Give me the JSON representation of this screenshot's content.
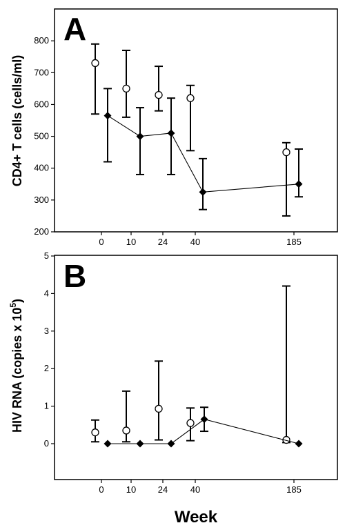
{
  "chart_data": [
    {
      "type": "line",
      "panel": "A",
      "ylabel": "CD4+ T cells (cells/ml)",
      "xlabel": "",
      "categories": [
        "0",
        "10",
        "24",
        "40",
        "185"
      ],
      "ylim": [
        200,
        900
      ],
      "yticks": [
        200,
        300,
        400,
        500,
        600,
        700,
        800
      ],
      "series": [
        {
          "marker": "circle-open",
          "connected": false,
          "points": [
            {
              "x": "0",
              "y": 730,
              "low": 570,
              "high": 790
            },
            {
              "x": "10",
              "y": 650,
              "low": 560,
              "high": 770
            },
            {
              "x": "24",
              "y": 630,
              "low": 580,
              "high": 720
            },
            {
              "x": "40",
              "y": 620,
              "low": 455,
              "high": 660
            },
            {
              "x": "185",
              "y": 450,
              "low": 250,
              "high": 480
            }
          ]
        },
        {
          "marker": "diamond-filled",
          "connected": true,
          "points": [
            {
              "x": "0",
              "y": 565,
              "low": 420,
              "high": 650
            },
            {
              "x": "10",
              "y": 500,
              "low": 380,
              "high": 590
            },
            {
              "x": "24",
              "y": 510,
              "low": 380,
              "high": 620
            },
            {
              "x": "40",
              "y": 325,
              "low": 270,
              "high": 430
            },
            {
              "x": "185",
              "y": 350,
              "low": 310,
              "high": 460
            }
          ]
        }
      ]
    },
    {
      "type": "line",
      "panel": "B",
      "ylabel_main": "HIV RNA (copies x 10",
      "ylabel_sup": "5",
      "ylabel_end": ")",
      "xlabel": "Week",
      "categories": [
        "0",
        "10",
        "24",
        "40",
        "185"
      ],
      "ylim": [
        -1,
        5
      ],
      "yticks": [
        0,
        1,
        2,
        3,
        4,
        5
      ],
      "series": [
        {
          "marker": "circle-open",
          "connected": false,
          "points": [
            {
              "x": "0",
              "y": 0.3,
              "low": 0.05,
              "high": 0.63
            },
            {
              "x": "10",
              "y": 0.35,
              "low": 0.05,
              "high": 1.4
            },
            {
              "x": "24",
              "y": 0.93,
              "low": 0.1,
              "high": 2.2
            },
            {
              "x": "40",
              "y": 0.55,
              "low": 0.08,
              "high": 0.95
            },
            {
              "x": "185",
              "y": 0.1,
              "low": 0.03,
              "high": 4.2
            }
          ]
        },
        {
          "marker": "diamond-filled",
          "connected": true,
          "points": [
            {
              "x": "0",
              "y": 0,
              "low": null,
              "high": null
            },
            {
              "x": "10",
              "y": 0,
              "low": null,
              "high": null
            },
            {
              "x": "24",
              "y": 0,
              "low": null,
              "high": null
            },
            {
              "x": "40",
              "y": 0.65,
              "low": 0.33,
              "high": 0.97
            },
            {
              "x": "185",
              "y": 0,
              "low": null,
              "high": null
            }
          ]
        }
      ]
    }
  ]
}
